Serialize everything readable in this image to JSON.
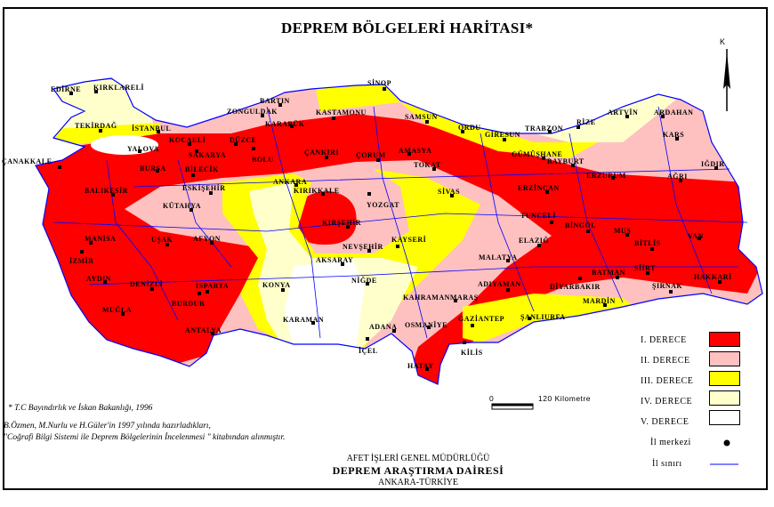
{
  "title": "DEPREM BÖLGELERİ HARİTASI*",
  "north_label": "K",
  "colors": {
    "zone1": "#ff0000",
    "zone2": "#ffc0c0",
    "zone3": "#ffff00",
    "zone4": "#ffffcc",
    "zone5": "#ffffff",
    "boundary": "#0000ff"
  },
  "cities": [
    "EDİRNE",
    "KIRKLARELİ",
    "TEKİRDAĞ",
    "İSTANBUL",
    "YALOVA",
    "KOCAELİ",
    "SAKARYA",
    "DÜZCE",
    "BOLU",
    "ZONGULDAK",
    "BARTIN",
    "KARABÜK",
    "KASTAMONU",
    "SİNOP",
    "ÇANKIRI",
    "ÇORUM",
    "ANKARA",
    "KIRIKKALE",
    "YOZGAT",
    "ESKİŞEHİR",
    "BİLECİK",
    "BURSA",
    "BALIKESİR",
    "ÇANAKKALE",
    "KÜTAHYA",
    "SAMSUN",
    "ORDU",
    "GİRESUN",
    "TRABZON",
    "RİZE",
    "ARTVİN",
    "ARDAHAN",
    "KARS",
    "AMASYA",
    "TOKAT",
    "GÜMÜŞHANE",
    "BAYBURT",
    "ERZURUM",
    "AĞRI",
    "IĞDIR",
    "SİVAS",
    "ERZİNCAN",
    "TUNCELİ",
    "MANİSA",
    "İZMİR",
    "AYDIN",
    "DENİZLİ",
    "MUĞLA",
    "UŞAK",
    "AFYON",
    "ISPARTA",
    "BURDUR",
    "ANTALYA",
    "KONYA",
    "KARAMAN",
    "AKSARAY",
    "NİĞDE",
    "NEVŞEHİR",
    "KIRŞEHİR",
    "KAYSERİ",
    "ADANA",
    "İÇEL",
    "KAHRAMANMARAŞ",
    "OSMANİYE",
    "GAZİANTEP",
    "KİLİS",
    "HATAY",
    "ŞANLIURFA",
    "MALATYA",
    "ADIYAMAN",
    "ELAZIĞ",
    "BİNGÖL",
    "MUŞ",
    "BİTLİS",
    "VAN",
    "SİİRT",
    "BATMAN",
    "DİYARBAKIR",
    "MARDİN",
    "ŞIRNAK",
    "HAKKARİ"
  ],
  "legend": {
    "zones": [
      {
        "label": "I. DERECE",
        "color": "#ff0000"
      },
      {
        "label": "II. DERECE",
        "color": "#ffc0c0"
      },
      {
        "label": "III. DERECE",
        "color": "#ffff00"
      },
      {
        "label": "IV. DERECE",
        "color": "#ffffcc"
      },
      {
        "label": "V. DERECE",
        "color": "#ffffff"
      }
    ],
    "city_center": "İl merkezi",
    "province_boundary": "İl sınırı"
  },
  "scale": {
    "start": "0",
    "end": "120",
    "unit": "Kilometre"
  },
  "notes": {
    "source": "* T.C Bayındırlık ve İskan Bakanlığı, 1996",
    "authors": "B.Özmen, M.Nurlu ve H.Güler'in 1997 yılında hazırladıkları,",
    "book": "\"Coğrafi Bilgi Sistemi ile Deprem Bölgelerinin İncelenmesi \" kitabından alınmıştır."
  },
  "footer": {
    "org": "AFET İŞLERİ GENEL MÜDÜRLÜĞÜ",
    "dept": "DEPREM ARAŞTIRMA DAİRESİ",
    "place": "ANKARA-TÜRKİYE"
  }
}
